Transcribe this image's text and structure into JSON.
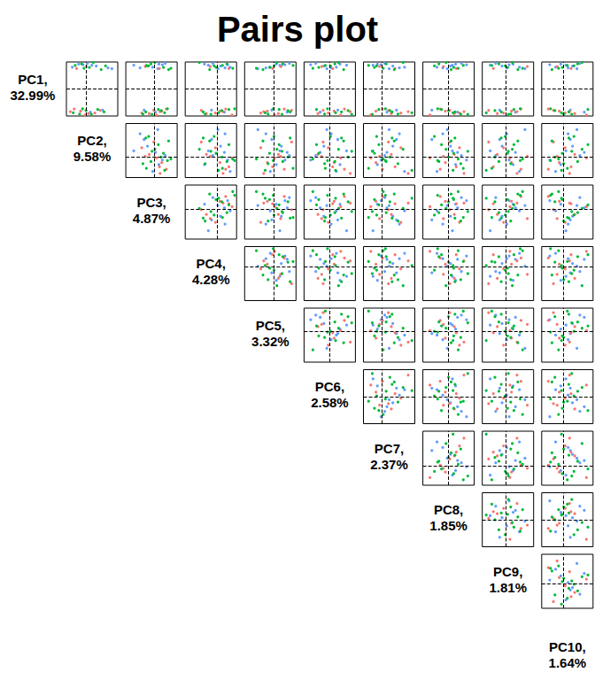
{
  "chart_data": {
    "type": "scatter",
    "title": "Pairs plot",
    "tick_labels": false,
    "grid": false,
    "reference_value": 0,
    "components": [
      {
        "label_lines": [
          "PC1,",
          "32.99%"
        ],
        "lim": [
          -10,
          10
        ]
      },
      {
        "label_lines": [
          "PC2,",
          "9.58%"
        ],
        "lim": [
          -4,
          6.5
        ]
      },
      {
        "label_lines": [
          "PC3,",
          "4.87%"
        ],
        "lim": [
          -5,
          4
        ]
      },
      {
        "label_lines": [
          "PC4,",
          "4.28%"
        ],
        "lim": [
          -5,
          3
        ]
      },
      {
        "label_lines": [
          "PC5,",
          "3.32%"
        ],
        "lim": [
          -4,
          3
        ]
      },
      {
        "label_lines": [
          "PC6,",
          "2.58%"
        ],
        "lim": [
          -3.5,
          3.5
        ]
      },
      {
        "label_lines": [
          "PC7,",
          "2.37%"
        ],
        "lim": [
          -2.5,
          4.5
        ]
      },
      {
        "label_lines": [
          "PC8,",
          "1.85%"
        ],
        "lim": [
          -4,
          4
        ]
      },
      {
        "label_lines": [
          "PC9,",
          "1.81%"
        ],
        "lim": [
          -3,
          3.5
        ]
      },
      {
        "label_lines": [
          "PC10,",
          "1.64%"
        ],
        "lim": [
          -3,
          4
        ]
      }
    ],
    "series": [
      {
        "color": "#619CFF",
        "marker": "circle",
        "values": [
          [
            8.5,
            2.1,
            -1.2,
            0.5,
            1.0,
            -0.8,
            1.5,
            0.3,
            -0.5,
            1.2
          ],
          [
            9.2,
            -1.5,
            0.8,
            -2.0,
            0.3,
            1.4,
            -0.6,
            1.1,
            0.9,
            -0.4
          ],
          [
            7.8,
            4.5,
            -2.5,
            1.2,
            -1.1,
            0.2,
            2.4,
            -0.9,
            0.1,
            0.6
          ],
          [
            9.5,
            0.3,
            1.9,
            -0.7,
            2.1,
            -1.9,
            0.4,
            2.0,
            -1.3,
            2.2
          ],
          [
            8.1,
            -2.8,
            -0.3,
            2.0,
            -0.5,
            0.9,
            3.1,
            -1.8,
            1.7,
            -1.1
          ],
          [
            8.8,
            1.2,
            -3.6,
            -1.4,
            0.8,
            2.3,
            -1.2,
            0.6,
            -2.0,
            0.3
          ],
          [
            7.5,
            5.3,
            0.6,
            0.1,
            -2.2,
            -0.4,
            1.0,
            -0.2,
            2.4,
            1.8
          ],
          [
            9.0,
            -0.6,
            1.4,
            1.6,
            1.5,
            -2.6,
            -0.1,
            2.8,
            0.4,
            -1.9
          ],
          [
            -7.8,
            3.4,
            -1.8,
            -0.9,
            -0.3,
            1.1,
            2.0,
            -2.6,
            -0.8,
            0.9
          ],
          [
            -8.6,
            0.9,
            0.2,
            1.1,
            1.8,
            -1.3,
            0.7,
            1.4,
            1.2,
            2.8
          ]
        ]
      },
      {
        "color": "#F8766D",
        "marker": "circle",
        "values": [
          [
            -8.2,
            -1.1,
            1.3,
            0.4,
            -0.9,
            0.6,
            -0.8,
            -0.5,
            0.7,
            -0.6
          ],
          [
            -9.1,
            0.5,
            -0.9,
            -1.7,
            0.6,
            -1.6,
            1.3,
            0.9,
            -1.1,
            1.5
          ],
          [
            -7.4,
            -2.4,
            2.1,
            1.3,
            1.4,
            2.0,
            0.1,
            -1.3,
            1.9,
            -2.1
          ],
          [
            -8.9,
            1.8,
            -2.2,
            -0.3,
            -1.8,
            -0.2,
            2.6,
            1.7,
            -0.3,
            0.2
          ],
          [
            -9.6,
            -0.2,
            0.4,
            2.3,
            0.1,
            1.5,
            -1.5,
            -2.9,
            0.5,
            3.1
          ],
          [
            -7.9,
            2.9,
            -0.1,
            -2.5,
            2.4,
            -0.9,
            0.9,
            0.2,
            -2.2,
            -1.4
          ],
          [
            -8.4,
            -3.2,
            1.0,
            0.9,
            -1.4,
            2.8,
            3.6,
            2.4,
            1.4,
            0.8
          ],
          [
            8.3,
            0.1,
            -1.6,
            -1.1,
            0.9,
            -1.1,
            -0.3,
            -0.8,
            2.7,
            -0.9
          ],
          [
            7.6,
            -1.9,
            0.9,
            1.8,
            -0.2,
            0.4,
            1.8,
            1.2,
            -1.6,
            1.0
          ]
        ]
      },
      {
        "color": "#00BA38",
        "marker": "circle",
        "values": [
          [
            8.0,
            0.7,
            1.6,
            -0.2,
            -0.6,
            -1.5,
            -1.0,
            0.8,
            0.2,
            -0.2
          ],
          [
            9.3,
            -0.9,
            -0.6,
            1.5,
            1.2,
            0.7,
            0.6,
            -1.5,
            -0.9,
            1.9
          ],
          [
            7.2,
            3.1,
            2.5,
            -1.2,
            -1.5,
            1.9,
            1.7,
            0.4,
            1.5,
            -1.6
          ],
          [
            8.7,
            -2.2,
            -1.4,
            0.8,
            2.6,
            -0.6,
            -1.8,
            2.3,
            -1.8,
            0.5
          ],
          [
            9.8,
            1.5,
            0.1,
            -2.8,
            0.4,
            1.2,
            2.9,
            -0.4,
            0.8,
            2.5
          ],
          [
            7.7,
            -0.4,
            2.9,
            2.4,
            -2.4,
            -2.3,
            0.2,
            1.5,
            2.1,
            -0.7
          ],
          [
            8.6,
            4.0,
            -1.0,
            -0.5,
            0.0,
            0.1,
            -0.7,
            -2.2,
            -0.1,
            1.4
          ],
          [
            -8.0,
            0.0,
            1.2,
            0.7,
            1.9,
            2.5,
            1.1,
            0.0,
            -1.4,
            -1.2
          ],
          [
            -9.3,
            -1.3,
            -2.0,
            -1.9,
            -0.8,
            -0.7,
            2.2,
            1.9,
            0.6,
            0.0
          ],
          [
            -7.6,
            2.4,
            0.7,
            1.8,
            0.7,
            -1.8,
            -0.4,
            -1.1,
            1.0,
            3.3
          ],
          [
            -8.8,
            -2.6,
            1.8,
            0.2,
            -1.2,
            0.8,
            4.1,
            0.7,
            -2.5,
            -0.3
          ],
          [
            -9.4,
            1.1,
            -0.4,
            -1.0,
            1.1,
            3.0,
            -1.3,
            3.0,
            0.3,
            1.1
          ],
          [
            -7.3,
            -0.7,
            2.3,
            2.7,
            -0.1,
            -0.3,
            0.5,
            -1.7,
            1.8,
            -1.8
          ],
          [
            -8.5,
            3.7,
            -1.5,
            -2.2,
            2.2,
            1.6,
            1.4,
            1.0,
            -0.6,
            0.7
          ]
        ]
      }
    ]
  }
}
